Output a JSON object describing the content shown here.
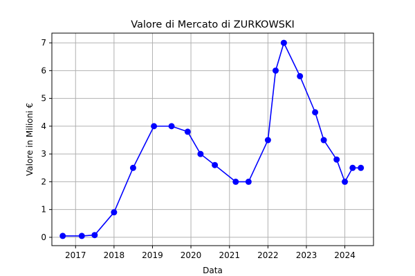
{
  "chart_data": {
    "type": "line",
    "title": "Valore di Mercato di ZURKOWSKI",
    "xlabel": "Data",
    "ylabel": "Valore in Milioni €",
    "xlim": [
      "2016-05-21",
      "2024-09-29"
    ],
    "ylim": [
      -0.3,
      7.35
    ],
    "grid": true,
    "x_ticks": [
      "2017",
      "2018",
      "2019",
      "2020",
      "2021",
      "2022",
      "2023",
      "2024"
    ],
    "y_ticks": [
      0,
      1,
      2,
      3,
      4,
      5,
      6,
      7
    ],
    "series": [
      {
        "name": "",
        "color": "#0000ff",
        "marker": "circle",
        "points": [
          {
            "x": "2016-09-01",
            "y": 0.05
          },
          {
            "x": "2017-03-01",
            "y": 0.05
          },
          {
            "x": "2017-07-01",
            "y": 0.08
          },
          {
            "x": "2018-01-01",
            "y": 0.9
          },
          {
            "x": "2018-07-01",
            "y": 2.5
          },
          {
            "x": "2019-01-15",
            "y": 4.0
          },
          {
            "x": "2019-07-01",
            "y": 4.0
          },
          {
            "x": "2019-12-01",
            "y": 3.8
          },
          {
            "x": "2020-04-01",
            "y": 3.0
          },
          {
            "x": "2020-08-15",
            "y": 2.6
          },
          {
            "x": "2021-03-01",
            "y": 2.0
          },
          {
            "x": "2021-07-01",
            "y": 2.0
          },
          {
            "x": "2022-01-01",
            "y": 3.5
          },
          {
            "x": "2022-03-15",
            "y": 6.0
          },
          {
            "x": "2022-06-01",
            "y": 7.0
          },
          {
            "x": "2022-11-01",
            "y": 5.8
          },
          {
            "x": "2023-03-25",
            "y": 4.5
          },
          {
            "x": "2023-06-15",
            "y": 3.5
          },
          {
            "x": "2023-10-15",
            "y": 2.8
          },
          {
            "x": "2024-01-01",
            "y": 2.0
          },
          {
            "x": "2024-03-15",
            "y": 2.5
          },
          {
            "x": "2024-06-01",
            "y": 2.5
          }
        ]
      }
    ]
  }
}
